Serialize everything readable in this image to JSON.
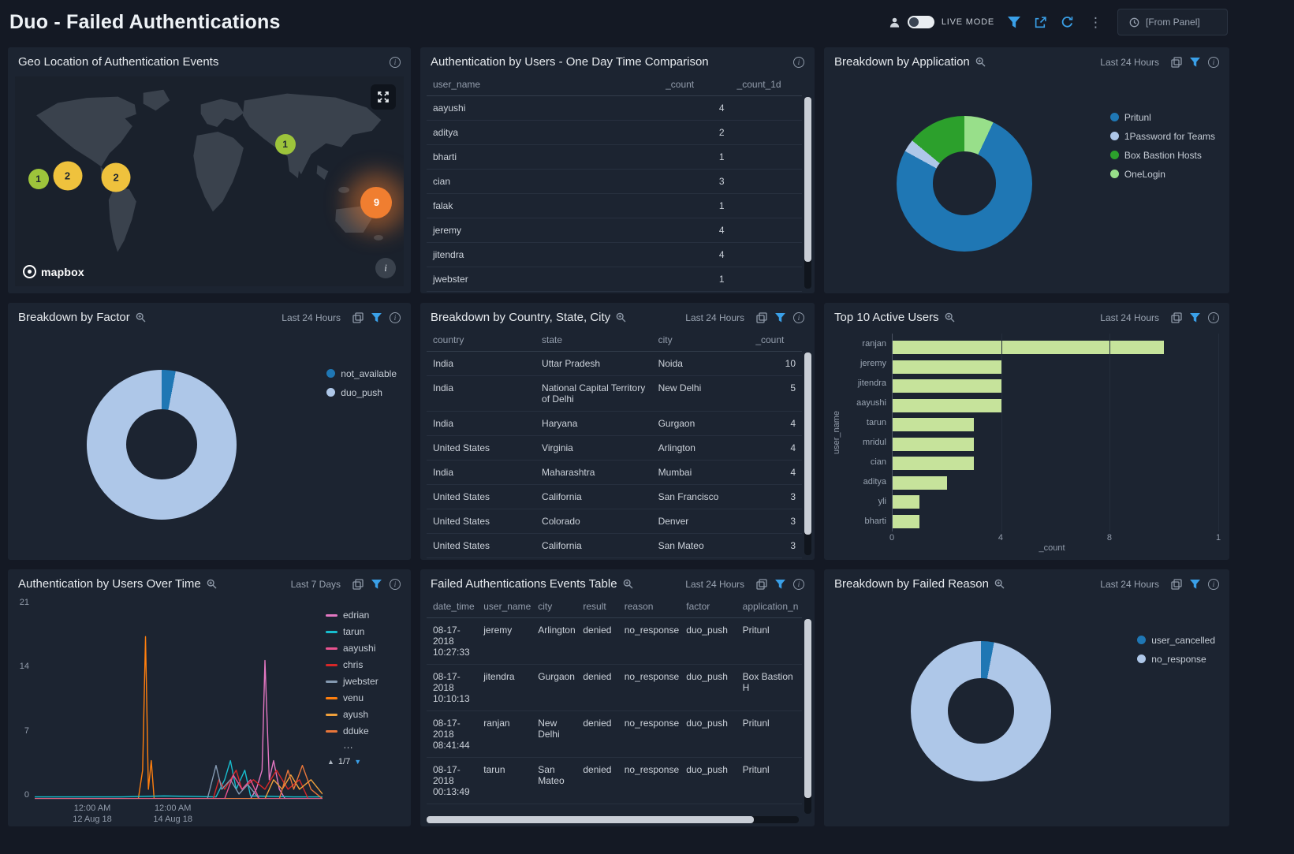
{
  "colors": {
    "accent_blue": "#3aa0e8",
    "donut_blue": "#1f77b4",
    "donut_light_blue": "#aec7e8",
    "donut_green": "#2ca02c",
    "donut_light_green": "#98df8a",
    "bar_green": "#c6e39b"
  },
  "icons": {
    "info": "i",
    "kebab": "⋮",
    "legend_more": "…",
    "page_up": "▲",
    "page_down": "▼"
  },
  "header": {
    "title": "Duo - Failed Authentications",
    "live_mode_label": "LIVE MODE",
    "from_panel_label": "[From Panel]"
  },
  "panels": {
    "geo": {
      "title": "Geo Location of Authentication Events",
      "attribution": "mapbox",
      "markers": [
        {
          "label": "1",
          "x": 6,
          "y": 49,
          "size": "sm",
          "color": "#9dc43b",
          "text": "#1d2630",
          "glow": false
        },
        {
          "label": "2",
          "x": 13.5,
          "y": 47.5,
          "size": "md",
          "color": "#efc23d",
          "text": "#1d2630",
          "glow": false
        },
        {
          "label": "2",
          "x": 26,
          "y": 48,
          "size": "md",
          "color": "#efc23d",
          "text": "#1d2630",
          "glow": false
        },
        {
          "label": "1",
          "x": 69.5,
          "y": 32.5,
          "size": "sm",
          "color": "#9dc43b",
          "text": "#1d2630",
          "glow": false
        },
        {
          "label": "9",
          "x": 93,
          "y": 60,
          "size": "lg",
          "color": "#f07e30",
          "text": "#ffffff",
          "glow": true
        }
      ]
    },
    "user_comparison": {
      "title": "Authentication by Users - One Day Time Comparison",
      "table": {
        "columns": [
          {
            "label": "user_name"
          },
          {
            "label": "_count",
            "align": "right"
          },
          {
            "label": "_count_1d",
            "align": "right"
          }
        ],
        "rows": [
          [
            "aayushi",
            "4",
            ""
          ],
          [
            "aditya",
            "2",
            ""
          ],
          [
            "bharti",
            "1",
            ""
          ],
          [
            "cian",
            "3",
            ""
          ],
          [
            "falak",
            "1",
            ""
          ],
          [
            "jeremy",
            "4",
            ""
          ],
          [
            "jitendra",
            "4",
            ""
          ],
          [
            "jwebster",
            "1",
            ""
          ]
        ]
      }
    },
    "application": {
      "title": "Breakdown by Application",
      "time_range": "Last 24 Hours",
      "chart": {
        "type": "pie",
        "slices": [
          {
            "label": "OneLogin",
            "color": "#98df8a",
            "value": 7
          },
          {
            "label": "Pritunl",
            "color": "#1f77b4",
            "value": 76
          },
          {
            "label": "1Password for Teams",
            "color": "#aec7e8",
            "value": 3
          },
          {
            "label": "Box Bastion Hosts",
            "color": "#2ca02c",
            "value": 14
          }
        ],
        "legend": [
          {
            "label": "Pritunl",
            "color": "#1f77b4"
          },
          {
            "label": "1Password for Teams",
            "color": "#aec7e8"
          },
          {
            "label": "Box Bastion Hosts",
            "color": "#2ca02c"
          },
          {
            "label": "OneLogin",
            "color": "#98df8a"
          }
        ]
      }
    },
    "factor": {
      "title": "Breakdown by Factor",
      "time_range": "Last 24 Hours",
      "chart": {
        "type": "pie",
        "slices": [
          {
            "label": "not_available",
            "color": "#1f77b4",
            "value": 3
          },
          {
            "label": "duo_push",
            "color": "#aec7e8",
            "value": 97
          }
        ],
        "legend": [
          {
            "label": "not_available",
            "color": "#1f77b4"
          },
          {
            "label": "duo_push",
            "color": "#aec7e8"
          }
        ]
      }
    },
    "country": {
      "title": "Breakdown by Country, State, City",
      "time_range": "Last 24 Hours",
      "table": {
        "columns": [
          {
            "label": "country"
          },
          {
            "label": "state"
          },
          {
            "label": "city"
          },
          {
            "label": "_count",
            "align": "right"
          }
        ],
        "rows": [
          [
            "India",
            "Uttar Pradesh",
            "Noida",
            "10"
          ],
          [
            "India",
            "National Capital Territory of Delhi",
            "New Delhi",
            "5"
          ],
          [
            "India",
            "Haryana",
            "Gurgaon",
            "4"
          ],
          [
            "United States",
            "Virginia",
            "Arlington",
            "4"
          ],
          [
            "India",
            "Maharashtra",
            "Mumbai",
            "4"
          ],
          [
            "United States",
            "California",
            "San Francisco",
            "3"
          ],
          [
            "United States",
            "Colorado",
            "Denver",
            "3"
          ],
          [
            "United States",
            "California",
            "San Mateo",
            "3"
          ]
        ]
      }
    },
    "top_users": {
      "title": "Top 10 Active Users",
      "time_range": "Last 24 Hours",
      "chart": {
        "type": "bar",
        "orientation": "horizontal",
        "categories": [
          "ranjan",
          "jeremy",
          "jitendra",
          "aayushi",
          "tarun",
          "mridul",
          "cian",
          "aditya",
          "yli",
          "bharti"
        ],
        "values": [
          10,
          4,
          4,
          4,
          3,
          3,
          3,
          2,
          1,
          1
        ],
        "bar_color": "#c6e39b",
        "xlabel": "_count",
        "ylabel": "user_name",
        "xlim": [
          0,
          12
        ],
        "x_ticks": [
          "0",
          "4",
          "8",
          "1"
        ]
      }
    },
    "over_time": {
      "title": "Authentication by Users Over Time",
      "time_range": "Last 7 Days",
      "chart": {
        "type": "line",
        "ylim": [
          0,
          21
        ],
        "y_ticks": [
          "21",
          "14",
          "7",
          "0"
        ],
        "x_ticks": [
          {
            "line1": "12:00 AM",
            "line2": "12 Aug 18",
            "pos": 20
          },
          {
            "line1": "12:00 AM",
            "line2": "14 Aug 18",
            "pos": 48
          }
        ],
        "series": [
          {
            "name": "venu",
            "color": "#ff7f0e",
            "points": [
              [
                0,
                0
              ],
              [
                0.36,
                0
              ],
              [
                0.375,
                3
              ],
              [
                0.385,
                17
              ],
              [
                0.395,
                1
              ],
              [
                0.405,
                4
              ],
              [
                0.415,
                0
              ],
              [
                0.55,
                0
              ],
              [
                1,
                0
              ]
            ]
          },
          {
            "name": "edrian",
            "color": "#e377c2",
            "points": [
              [
                0,
                0
              ],
              [
                0.75,
                0
              ],
              [
                0.77,
                1
              ],
              [
                0.79,
                3
              ],
              [
                0.8,
                14.5
              ],
              [
                0.815,
                2
              ],
              [
                0.83,
                4
              ],
              [
                0.85,
                1
              ],
              [
                0.87,
                0
              ],
              [
                1,
                0
              ]
            ]
          },
          {
            "name": "tarun",
            "color": "#17becf",
            "points": [
              [
                0,
                0.2
              ],
              [
                0.3,
                0.2
              ],
              [
                0.45,
                0.3
              ],
              [
                0.63,
                0.2
              ],
              [
                0.66,
                2
              ],
              [
                0.68,
                4
              ],
              [
                0.7,
                1
              ],
              [
                0.73,
                3
              ],
              [
                0.75,
                0.3
              ],
              [
                0.9,
                0.2
              ],
              [
                1,
                0.2
              ]
            ]
          },
          {
            "name": "chris",
            "color": "#d62728",
            "points": [
              [
                0,
                0
              ],
              [
                0.62,
                0
              ],
              [
                0.64,
                2
              ],
              [
                0.66,
                1
              ],
              [
                0.7,
                3
              ],
              [
                0.72,
                1
              ],
              [
                0.76,
                2
              ],
              [
                0.8,
                1
              ],
              [
                0.84,
                3
              ],
              [
                0.88,
                1
              ],
              [
                0.92,
                2
              ],
              [
                0.95,
                0
              ],
              [
                1,
                0
              ]
            ]
          },
          {
            "name": "jwebster",
            "color": "#8499b1",
            "points": [
              [
                0,
                0
              ],
              [
                0.6,
                0
              ],
              [
                0.63,
                3.5
              ],
              [
                0.65,
                1
              ],
              [
                0.68,
                2
              ],
              [
                0.71,
                0.5
              ],
              [
                0.74,
                1.5
              ],
              [
                0.78,
                0
              ],
              [
                1,
                0
              ]
            ]
          },
          {
            "name": "ayush",
            "color": "#f0a13c",
            "points": [
              [
                0,
                0
              ],
              [
                0.8,
                0
              ],
              [
                0.83,
                2
              ],
              [
                0.86,
                1
              ],
              [
                0.89,
                2.5
              ],
              [
                0.92,
                1
              ],
              [
                0.96,
                2
              ],
              [
                1,
                0.5
              ]
            ]
          },
          {
            "name": "dduke",
            "color": "#e8763a",
            "points": [
              [
                0,
                0
              ],
              [
                0.85,
                0
              ],
              [
                0.88,
                3
              ],
              [
                0.9,
                1
              ],
              [
                0.93,
                3.5
              ],
              [
                0.96,
                1
              ],
              [
                1,
                0
              ]
            ]
          },
          {
            "name": "aayushi",
            "color": "#e8538f",
            "points": [
              [
                0,
                0
              ],
              [
                0.66,
                0
              ],
              [
                0.69,
                2.5
              ],
              [
                0.72,
                1
              ],
              [
                0.75,
                2
              ],
              [
                0.78,
                0
              ],
              [
                1,
                0
              ]
            ]
          }
        ],
        "legend": [
          {
            "label": "edrian",
            "color": "#e377c2"
          },
          {
            "label": "tarun",
            "color": "#17becf"
          },
          {
            "label": "aayushi",
            "color": "#e8538f"
          },
          {
            "label": "chris",
            "color": "#d62728"
          },
          {
            "label": "jwebster",
            "color": "#8499b1"
          },
          {
            "label": "venu",
            "color": "#ff7f0e"
          },
          {
            "label": "ayush",
            "color": "#f0a13c"
          },
          {
            "label": "dduke",
            "color": "#e8763a"
          }
        ],
        "pagination": "1/7"
      }
    },
    "events": {
      "title": "Failed Authentications Events Table",
      "time_range": "Last 24 Hours",
      "table": {
        "columns": [
          {
            "label": "date_time"
          },
          {
            "label": "user_name"
          },
          {
            "label": "city"
          },
          {
            "label": "result"
          },
          {
            "label": "reason"
          },
          {
            "label": "factor"
          },
          {
            "label": "application_n"
          }
        ],
        "rows": [
          [
            "08-17-2018 10:27:33",
            "jeremy",
            "Arlington",
            "denied",
            "no_response",
            "duo_push",
            "Pritunl"
          ],
          [
            "08-17-2018 10:10:13",
            "jitendra",
            "Gurgaon",
            "denied",
            "no_response",
            "duo_push",
            "Box Bastion H"
          ],
          [
            "08-17-2018 08:41:44",
            "ranjan",
            "New Delhi",
            "denied",
            "no_response",
            "duo_push",
            "Pritunl"
          ],
          [
            "08-17-2018 00:13:49",
            "tarun",
            "San Mateo",
            "denied",
            "no_response",
            "duo_push",
            "Pritunl"
          ]
        ]
      }
    },
    "failed_reason": {
      "title": "Breakdown by Failed Reason",
      "time_range": "Last 24 Hours",
      "chart": {
        "type": "pie",
        "slices": [
          {
            "label": "user_cancelled",
            "color": "#1f77b4",
            "value": 3
          },
          {
            "label": "no_response",
            "color": "#aec7e8",
            "value": 97
          }
        ],
        "legend": [
          {
            "label": "user_cancelled",
            "color": "#1f77b4"
          },
          {
            "label": "no_response",
            "color": "#aec7e8"
          }
        ]
      }
    }
  }
}
